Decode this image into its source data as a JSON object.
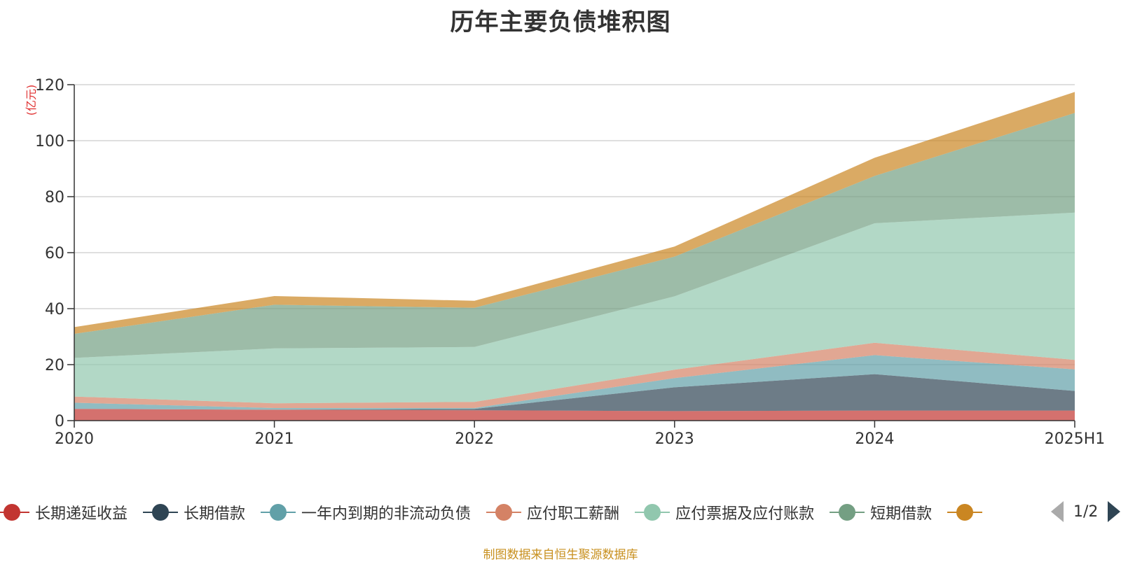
{
  "title": "历年主要负债堆积图",
  "unit_label": "(亿元)",
  "source_note": "制图数据来自恒生聚源数据库",
  "legend_page": "1/2",
  "chart_data": {
    "type": "area",
    "stacked": true,
    "title": "历年主要负债堆积图",
    "ylabel": "(亿元)",
    "categories": [
      "2020",
      "2021",
      "2022",
      "2023",
      "2024",
      "2025H1"
    ],
    "ylim": [
      0,
      120
    ],
    "yticks": [
      0,
      20,
      40,
      60,
      80,
      100,
      120
    ],
    "grid": true,
    "legend_position": "bottom",
    "series": [
      {
        "name": "长期递延收益",
        "color": "#c23531",
        "values": [
          4.2,
          3.9,
          3.7,
          3.4,
          3.6,
          3.6
        ]
      },
      {
        "name": "长期借款",
        "color": "#2f4554",
        "values": [
          0.0,
          0.0,
          0.5,
          8.5,
          13.0,
          7.0
        ]
      },
      {
        "name": "一年内到期的非流动负债",
        "color": "#61a0a8",
        "values": [
          2.2,
          0.6,
          0.3,
          3.3,
          6.8,
          7.7
        ]
      },
      {
        "name": "应付职工薪酬",
        "color": "#d48265",
        "values": [
          2.2,
          1.7,
          2.2,
          3.0,
          4.4,
          3.4
        ]
      },
      {
        "name": "应付票据及应付账款",
        "color": "#91c7ae",
        "values": [
          13.8,
          19.6,
          19.6,
          26.2,
          42.7,
          52.6
        ]
      },
      {
        "name": "短期借款",
        "color": "#749f83",
        "values": [
          8.6,
          15.6,
          14.0,
          14.2,
          16.9,
          35.6
        ]
      },
      {
        "name": "",
        "color": "#ca8622",
        "values": [
          2.4,
          3.1,
          2.5,
          3.6,
          6.5,
          7.5
        ]
      }
    ]
  }
}
